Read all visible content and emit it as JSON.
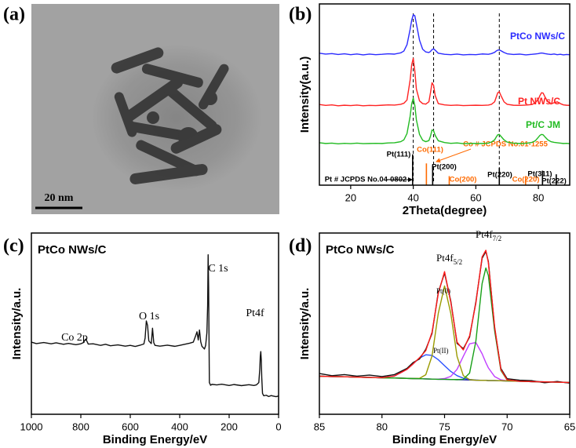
{
  "chart_data": [
    {
      "type": "image",
      "panel_label": "(a)",
      "scale_bar_label": "20 nm"
    },
    {
      "type": "line",
      "panel_label": "(b)",
      "xlabel": "2Theta(degree)",
      "ylabel": "Intensity(a.u.)",
      "xlim": [
        10,
        90
      ],
      "xticks": [
        20,
        40,
        60,
        80
      ],
      "ylim": [
        0,
        100
      ],
      "x": [
        10,
        12,
        14,
        16,
        18,
        20,
        22,
        24,
        26,
        28,
        30,
        32,
        34,
        36,
        37,
        38,
        39,
        39.5,
        40,
        40.5,
        41,
        42,
        43,
        44,
        45,
        45.5,
        46,
        46.5,
        47,
        48,
        50,
        52,
        54,
        56,
        58,
        60,
        62,
        64,
        65,
        66,
        66.5,
        67,
        67.5,
        68,
        69,
        70,
        72,
        74,
        76,
        78,
        79,
        80,
        80.5,
        81,
        81.5,
        82,
        83,
        84,
        85,
        86,
        87,
        88,
        89,
        90
      ],
      "series": [
        {
          "name": "PtCo NWs/C",
          "color": "#2b2bff",
          "values": [
            72.8,
            72.3,
            72.6,
            72.1,
            72.5,
            72.0,
            72.4,
            71.9,
            72.3,
            72.0,
            72.2,
            72.5,
            72.3,
            73.0,
            74.0,
            77.5,
            86.0,
            91.0,
            94.0,
            93.5,
            89.0,
            80.0,
            75.0,
            73.5,
            73.2,
            73.8,
            74.8,
            75.2,
            74.5,
            72.8,
            72.2,
            72.0,
            72.3,
            71.9,
            72.1,
            72.0,
            72.4,
            72.2,
            72.6,
            73.3,
            74.0,
            74.5,
            74.6,
            74.2,
            73.2,
            72.5,
            72.1,
            72.3,
            71.9,
            72.2,
            72.4,
            72.6,
            72.8,
            72.9,
            72.8,
            72.6,
            72.3,
            72.1,
            72.4,
            72.0,
            72.2,
            71.9,
            72.1,
            72.0
          ]
        },
        {
          "name": "Pt NWs/C",
          "color": "#ff2222",
          "values": [
            44.5,
            44.0,
            44.3,
            43.8,
            44.1,
            43.9,
            44.2,
            43.8,
            44.0,
            43.9,
            44.1,
            44.3,
            44.2,
            44.6,
            45.2,
            47.0,
            58.0,
            66.5,
            70.0,
            63.0,
            53.0,
            46.5,
            45.0,
            44.7,
            46.0,
            51.0,
            56.5,
            55.0,
            49.5,
            45.0,
            44.3,
            44.0,
            44.2,
            43.9,
            44.0,
            44.1,
            44.0,
            44.2,
            44.6,
            46.0,
            48.5,
            51.0,
            51.5,
            49.5,
            46.0,
            44.6,
            44.1,
            44.0,
            44.2,
            44.5,
            45.5,
            47.5,
            49.5,
            51.0,
            50.8,
            49.0,
            46.0,
            44.8,
            45.5,
            46.0,
            45.0,
            44.3,
            44.1,
            44.0
          ]
        },
        {
          "name": "Pt/C JM",
          "color": "#22bb22",
          "values": [
            23.4,
            23.0,
            23.2,
            22.8,
            23.1,
            22.9,
            23.2,
            22.9,
            23.0,
            23.1,
            23.0,
            23.3,
            23.4,
            24.0,
            25.0,
            28.5,
            38.0,
            45.0,
            48.0,
            44.0,
            36.0,
            28.0,
            24.8,
            24.0,
            24.6,
            27.0,
            30.5,
            30.0,
            27.5,
            24.5,
            23.5,
            23.1,
            23.3,
            22.9,
            23.0,
            23.1,
            23.0,
            23.2,
            23.8,
            25.0,
            26.5,
            27.8,
            28.0,
            27.0,
            25.0,
            23.8,
            23.2,
            23.0,
            23.1,
            23.6,
            24.5,
            26.5,
            27.5,
            28.0,
            27.8,
            26.8,
            25.0,
            24.0,
            23.6,
            23.4,
            23.2,
            23.0,
            23.1,
            22.9
          ]
        }
      ],
      "dashed_lines": [
        40,
        46.5,
        67.5
      ],
      "references": [
        {
          "name": "Pt # JCPDS No.04-0802",
          "color": "#000000",
          "peaks": [
            {
              "label": "Pt(111)",
              "x": 39.8,
              "value": 17
            },
            {
              "label": "Pt(200)",
              "x": 46.2,
              "value": 11
            },
            {
              "label": "Pt(220)",
              "x": 67.5,
              "value": 9.5
            },
            {
              "label": "Pt(311)",
              "x": 81.3,
              "value": 8
            },
            {
              "label": "Pt(222)",
              "x": 85.7,
              "value": 6
            }
          ]
        },
        {
          "name": "Co # JCPDS No.01-1255",
          "color": "#ff6a00",
          "peaks": [
            {
              "label": "Co(111)",
              "x": 44.2,
              "value": 12
            },
            {
              "label": "Co(200)",
              "x": 51.5,
              "value": 5
            },
            {
              "label": "Co(220)",
              "x": 75.9,
              "value": 5
            }
          ]
        }
      ]
    },
    {
      "type": "line",
      "panel_label": "(c)",
      "title": "PtCo NWs/C",
      "xlabel": "Binding Energy/eV",
      "ylabel": "Intensity/a.u.",
      "xlim": [
        1000,
        0
      ],
      "xticks": [
        1000,
        800,
        600,
        400,
        200,
        0
      ],
      "ylim": [
        0,
        100
      ],
      "x": [
        1000,
        980,
        950,
        920,
        900,
        870,
        850,
        820,
        800,
        790,
        780,
        775,
        770,
        750,
        720,
        700,
        680,
        650,
        620,
        600,
        580,
        560,
        545,
        540,
        535,
        530,
        525,
        515,
        510,
        505,
        500,
        480,
        450,
        420,
        400,
        380,
        360,
        345,
        335,
        330,
        325,
        320,
        315,
        310,
        300,
        295,
        290,
        287,
        285,
        283,
        280,
        275,
        270,
        250,
        230,
        200,
        180,
        150,
        120,
        100,
        90,
        80,
        76,
        74,
        72,
        70,
        68,
        65,
        60,
        50,
        40,
        30,
        20,
        10,
        0
      ],
      "series": [
        {
          "color": "#111111",
          "values": [
            39.8,
            39.0,
            39.6,
            38.9,
            39.4,
            38.6,
            39.1,
            38.4,
            38.9,
            39.5,
            41.5,
            40.2,
            38.7,
            38.9,
            38.0,
            38.6,
            37.8,
            38.3,
            37.6,
            38.0,
            37.4,
            38.1,
            38.8,
            42.0,
            51.5,
            49.0,
            40.5,
            39.0,
            47.5,
            39.5,
            38.0,
            37.6,
            38.1,
            37.5,
            38.0,
            38.6,
            39.2,
            39.8,
            43.5,
            45.5,
            41.0,
            46.5,
            40.0,
            37.5,
            36.0,
            38.0,
            45.0,
            60.0,
            88.0,
            70.0,
            17.5,
            16.0,
            16.5,
            16.2,
            16.6,
            15.9,
            16.4,
            15.8,
            16.3,
            15.9,
            16.2,
            17.5,
            25.0,
            32.0,
            34.6,
            30.0,
            20.0,
            11.5,
            10.2,
            10.5,
            9.8,
            10.3,
            10.0,
            9.7,
            10.1
          ]
        }
      ],
      "annotations": [
        {
          "text": "Co 2p"
        },
        {
          "text": "O 1s"
        },
        {
          "text": "C 1s"
        },
        {
          "text": "Pt4f"
        }
      ]
    },
    {
      "type": "line",
      "panel_label": "(d)",
      "title": "PtCo NWs/C",
      "xlabel": "Binding Energy/eV",
      "ylabel": "Intensity/a.u.",
      "xlim": [
        85,
        65
      ],
      "xticks": [
        85,
        80,
        75,
        70,
        65
      ],
      "ylim": [
        0,
        100
      ],
      "x": [
        85,
        84,
        83,
        82,
        81,
        80,
        79,
        78,
        77.5,
        77,
        76.5,
        76,
        75.5,
        75,
        74.5,
        74,
        73.5,
        73,
        72.5,
        72,
        71.7,
        71.5,
        71,
        70.5,
        70,
        69,
        68,
        67,
        66,
        65
      ],
      "series": [
        {
          "color": "#1a1a9e",
          "values": [
            21.0,
            20.8,
            20.7,
            20.5,
            20.3,
            20.1,
            20.0,
            19.8,
            19.7,
            19.6,
            19.5,
            19.4,
            19.3,
            19.3,
            19.2,
            19.1,
            19.0,
            18.9,
            18.8,
            18.7,
            18.7,
            18.6,
            18.6,
            18.5,
            18.4,
            18.2,
            18.0,
            17.9,
            17.7,
            17.5
          ]
        },
        {
          "color": "#2a52ff",
          "values": [
            21.0,
            20.8,
            20.7,
            20.5,
            20.3,
            20.2,
            21.1,
            24.8,
            27.9,
            31.0,
            32.8,
            32.5,
            30.1,
            26.8,
            23.6,
            21.3,
            19.9,
            19.2,
            18.9,
            18.7,
            18.7,
            18.6,
            18.6,
            18.5,
            18.4,
            18.2,
            18.0,
            17.9,
            17.7,
            17.5
          ]
        },
        {
          "color": "#c040ff",
          "values": [
            21.0,
            20.8,
            20.7,
            20.5,
            20.3,
            20.1,
            20.0,
            19.8,
            19.7,
            19.6,
            19.5,
            19.4,
            19.4,
            19.7,
            20.9,
            24.8,
            32.0,
            38.9,
            39.6,
            33.4,
            28.5,
            25.6,
            20.8,
            19.0,
            18.5,
            18.2,
            18.0,
            17.9,
            17.7,
            17.5
          ]
        },
        {
          "color": "#9a9a00",
          "values": [
            21.0,
            20.8,
            20.7,
            20.5,
            20.3,
            20.1,
            20.0,
            19.8,
            19.7,
            19.8,
            21.8,
            32.2,
            55.7,
            70.8,
            55.6,
            31.9,
            21.3,
            19.1,
            18.8,
            18.7,
            18.7,
            18.6,
            18.6,
            18.5,
            18.4,
            18.2,
            18.0,
            17.9,
            17.7,
            17.5
          ]
        },
        {
          "color": "#18a018",
          "values": [
            21.0,
            20.8,
            20.7,
            20.5,
            20.3,
            20.1,
            20.0,
            19.8,
            19.7,
            19.6,
            19.5,
            19.4,
            19.3,
            19.3,
            19.2,
            19.1,
            19.3,
            22.7,
            40.3,
            72.1,
            80.7,
            76.6,
            46.2,
            24.2,
            18.9,
            18.2,
            18.0,
            17.9,
            17.7,
            17.5
          ]
        },
        {
          "color": "#111111",
          "values": [
            22.5,
            21.3,
            21.9,
            21.0,
            21.6,
            20.8,
            21.9,
            25.3,
            28.6,
            30.5,
            35.8,
            44.6,
            67.3,
            77.9,
            62.4,
            39.1,
            36.2,
            42.6,
            61.9,
            86.1,
            89.8,
            84.3,
            47.7,
            25.3,
            19.6,
            18.8,
            18.5,
            17.4,
            18.1,
            17.2
          ]
        },
        {
          "color": "#ff1a1a",
          "values": [
            21.0,
            20.8,
            20.7,
            20.5,
            20.3,
            20.2,
            21.1,
            24.8,
            27.9,
            31.2,
            35.1,
            45.3,
            66.6,
            78.7,
            61.7,
            39.8,
            35.5,
            43.3,
            61.2,
            86.8,
            90.5,
            83.6,
            48.4,
            24.7,
            19.0,
            18.2,
            18.0,
            17.9,
            17.7,
            17.5
          ]
        }
      ],
      "annotations": [
        {
          "text": "Pt4f",
          "sub": "5/2"
        },
        {
          "text": "Pt4f",
          "sub": "7/2"
        },
        {
          "text": "Pt(0)"
        },
        {
          "text": "Pt(II)"
        }
      ]
    }
  ]
}
